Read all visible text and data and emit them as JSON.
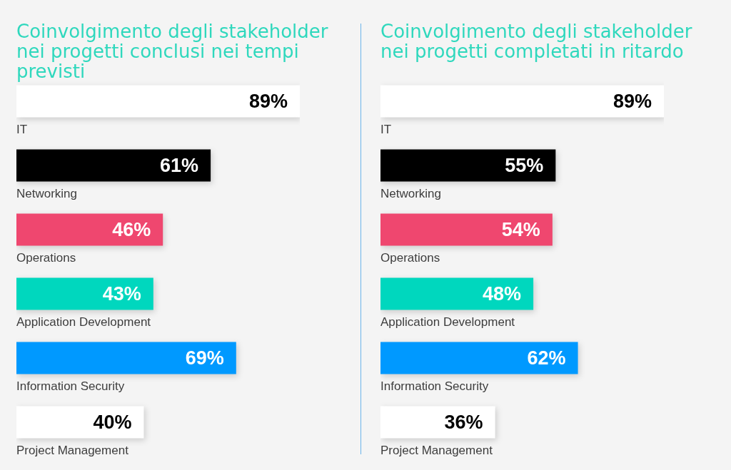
{
  "chart_data": [
    {
      "type": "bar",
      "orientation": "horizontal",
      "title": "Coinvolgimento degli stakeholder nei progetti conclusi nei tempi previsti",
      "categories": [
        "IT",
        "Networking",
        "Operations",
        "Application Development",
        "Information Security",
        "Project Management"
      ],
      "values": [
        89,
        61,
        46,
        43,
        69,
        40
      ],
      "colors": [
        "#ffffff",
        "#000000",
        "#ef476f",
        "#00d7be",
        "#0099ff",
        "#ffffff"
      ],
      "value_labels": [
        "89%",
        "61%",
        "46%",
        "43%",
        "69%",
        "40%"
      ],
      "tick_labels": "y"
    },
    {
      "type": "bar",
      "orientation": "horizontal",
      "title": "Coinvolgimento degli stakeholder nei progetti completati in ritardo",
      "categories": [
        "IT",
        "Networking",
        "Operations",
        "Application Development",
        "Information Security",
        "Project Management"
      ],
      "values": [
        89,
        55,
        54,
        48,
        62,
        36
      ],
      "colors": [
        "#ffffff",
        "#000000",
        "#ef476f",
        "#00d7be",
        "#0099ff",
        "#ffffff"
      ],
      "value_labels": [
        "89%",
        "55%",
        "54%",
        "48%",
        "62%",
        "36%"
      ],
      "tick_labels": "y"
    }
  ]
}
